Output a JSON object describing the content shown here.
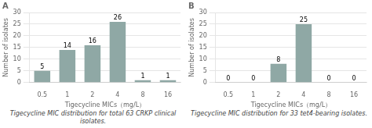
{
  "chart_data": [
    {
      "type": "bar",
      "title": "A",
      "caption": "Tigecycline MIC distribution for total 63 CRKP clinical isolates.",
      "xlabel": "Tigecycline MICs（mg/L）",
      "ylabel": "Number of isolates",
      "categories": [
        "0.5",
        "1",
        "2",
        "4",
        "8",
        "16"
      ],
      "values": [
        5,
        14,
        16,
        26,
        1,
        1
      ],
      "color": "#8fa8a5",
      "ylim": [
        0,
        30
      ],
      "yticks": [
        0,
        5,
        10,
        15,
        20,
        25,
        30
      ],
      "grid": true,
      "data_labels": true
    },
    {
      "type": "bar",
      "title": "B",
      "caption": "Tigecycline MIC distribution for 33 tet4-bearing isolates.",
      "xlabel": "Tigecycline MICs（mg/L）",
      "ylabel": "Number of isolates",
      "categories": [
        "0.5",
        "1",
        "2",
        "4",
        "8",
        "16"
      ],
      "values": [
        0,
        0,
        8,
        25,
        0,
        0
      ],
      "color": "#8fa8a5",
      "ylim": [
        0,
        30
      ],
      "yticks": [
        0,
        5,
        10,
        15,
        20,
        25,
        30
      ],
      "grid": true,
      "data_labels": true
    }
  ]
}
